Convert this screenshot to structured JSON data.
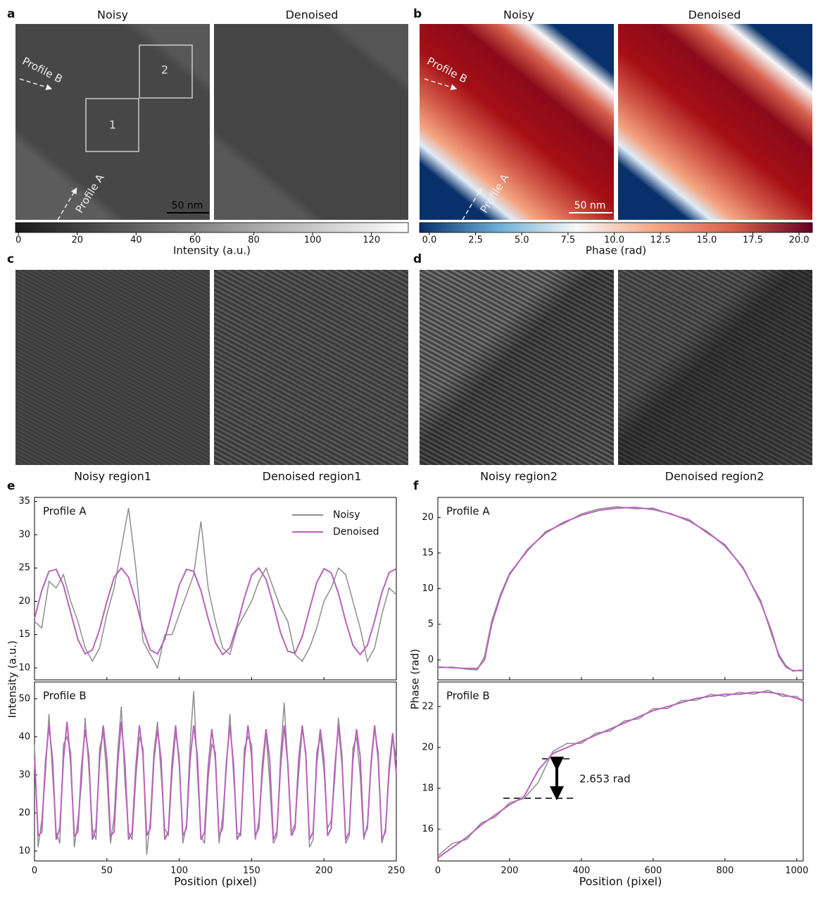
{
  "panels": {
    "a": {
      "letter": "a",
      "titles": [
        "Noisy",
        "Denoised"
      ],
      "roi_labels": [
        "1",
        "2"
      ],
      "profiles": [
        "Profile A",
        "Profile B"
      ],
      "scale_bar": "50 nm"
    },
    "b": {
      "letter": "b",
      "titles": [
        "Noisy",
        "Denoised"
      ],
      "profiles": [
        "Profile A",
        "Profile B"
      ],
      "scale_bar": "50 nm"
    },
    "c": {
      "letter": "c",
      "captions": [
        "Noisy region1",
        "Denoised region1"
      ]
    },
    "d": {
      "letter": "d",
      "captions": [
        "Noisy region2",
        "Denoised region2"
      ]
    },
    "e": {
      "letter": "e"
    },
    "f": {
      "letter": "f"
    }
  },
  "colorbars": [
    {
      "label": "Intensity (a.u.)",
      "lim": [
        -1,
        132.5
      ],
      "colors": [
        "#1a1a1a",
        "#ffffff"
      ],
      "ticks": [
        0,
        20,
        40,
        60,
        80,
        100,
        120
      ]
    },
    {
      "label": "Phase (rad)",
      "lim": [
        -0.53,
        20.72
      ],
      "colors": [
        "#08306b",
        "#6baed6",
        "#f7f7f7",
        "#f4a582",
        "#d6604d",
        "#67001f"
      ],
      "ticks": [
        {
          "value": 0,
          "label": "0.0"
        },
        {
          "value": 2.5,
          "label": "2.5"
        },
        {
          "value": 5,
          "label": "5.0"
        },
        {
          "value": 7.5,
          "label": "7.5"
        },
        {
          "value": 10,
          "label": "10.0"
        },
        {
          "value": 12.5,
          "label": "12.5"
        },
        {
          "value": 15,
          "label": "15.0"
        },
        {
          "value": 17.5,
          "label": "17.5"
        },
        {
          "value": 20,
          "label": "20.0"
        }
      ]
    }
  ],
  "chart_data": [
    {
      "type": "line",
      "title": "Profile A",
      "ylabel": "Intensity (a.u.)",
      "legend": "upper right",
      "show_xticklabels": false,
      "xlim": [
        0,
        250
      ],
      "xticks": [
        0,
        50,
        100,
        150,
        200,
        250
      ],
      "ylim": [
        8.2,
        35.6
      ],
      "yticks": [
        10,
        15,
        20,
        25,
        30,
        35
      ],
      "x": [
        0,
        5,
        10,
        15,
        20,
        25,
        30,
        35,
        40,
        45,
        50,
        55,
        60,
        65,
        70,
        75,
        80,
        85,
        90,
        95,
        100,
        105,
        110,
        115,
        120,
        125,
        130,
        135,
        140,
        145,
        150,
        155,
        160,
        165,
        170,
        175,
        180,
        185,
        190,
        195,
        200,
        205,
        210,
        215,
        220,
        225,
        230,
        235,
        240,
        245,
        250
      ],
      "series": [
        {
          "name": "Noisy",
          "color": "#8e8e8e",
          "values": [
            17,
            16,
            23,
            22,
            24,
            20,
            17,
            13,
            11,
            13,
            18,
            22,
            28,
            34,
            25,
            14,
            12,
            10,
            15,
            15,
            18,
            21,
            24,
            32,
            22,
            17,
            13,
            12,
            16,
            18,
            20,
            23,
            25,
            22,
            19,
            17,
            12,
            11,
            13,
            16,
            20,
            22,
            25,
            24,
            20,
            16,
            11,
            13,
            18,
            22,
            21
          ]
        },
        {
          "name": "Denoised",
          "color": "#b862bb",
          "values": [
            17.4,
            21.6,
            24.5,
            24.8,
            22.4,
            18.3,
            14.3,
            12.1,
            12.7,
            15.8,
            20.0,
            23.6,
            25.0,
            23.6,
            20.0,
            15.8,
            12.7,
            12.1,
            14.3,
            18.3,
            22.4,
            24.8,
            24.5,
            21.6,
            17.4,
            13.8,
            12.0,
            13.0,
            16.4,
            20.5,
            23.9,
            25.0,
            23.3,
            19.5,
            15.3,
            12.5,
            12.2,
            14.7,
            18.8,
            22.8,
            24.9,
            24.3,
            21.2,
            17.0,
            13.4,
            12.0,
            13.4,
            17.1,
            21.3,
            24.3,
            24.9
          ]
        }
      ]
    },
    {
      "type": "line",
      "title": "Profile B",
      "xlabel": "Position (pixel)",
      "xlim": [
        0,
        250
      ],
      "xticks": [
        0,
        50,
        100,
        150,
        200,
        250
      ],
      "ylim": [
        7.4,
        54.4
      ],
      "yticks": [
        10,
        20,
        30,
        40,
        50
      ],
      "x": [
        0,
        2.5,
        5,
        7.5,
        10,
        12.5,
        15,
        17.5,
        20,
        22.5,
        25,
        27.5,
        30,
        32.5,
        35,
        37.5,
        40,
        42.5,
        45,
        47.5,
        50,
        52.5,
        55,
        57.5,
        60,
        62.5,
        65,
        67.5,
        70,
        72.5,
        75,
        77.5,
        80,
        82.5,
        85,
        87.5,
        90,
        92.5,
        95,
        97.5,
        100,
        102.5,
        105,
        107.5,
        110,
        112.5,
        115,
        117.5,
        120,
        122.5,
        125,
        127.5,
        130,
        132.5,
        135,
        137.5,
        140,
        142.5,
        145,
        147.5,
        150,
        152.5,
        155,
        157.5,
        160,
        162.5,
        165,
        167.5,
        170,
        172.5,
        175,
        177.5,
        180,
        182.5,
        185,
        187.5,
        190,
        192.5,
        195,
        197.5,
        200,
        202.5,
        205,
        207.5,
        210,
        212.5,
        215,
        217.5,
        220,
        222.5,
        225,
        227.5,
        230,
        232.5,
        235,
        237.5,
        240,
        242.5,
        245,
        247.5,
        250
      ],
      "series": [
        {
          "color": "#8e8e8e",
          "values": [
            38,
            11,
            18,
            30,
            46,
            30,
            15,
            12,
            38,
            40,
            36,
            11,
            18,
            28,
            45,
            32,
            16,
            13,
            37,
            41,
            30,
            12,
            19,
            36,
            48,
            28,
            15,
            13,
            29,
            40,
            37,
            9,
            18,
            36,
            44,
            30,
            16,
            14,
            30,
            41,
            35,
            12,
            17,
            38,
            52,
            31,
            14,
            12,
            29,
            38,
            36,
            12,
            19,
            31,
            46,
            30,
            15,
            14,
            37,
            40,
            38,
            13,
            18,
            30,
            41,
            28,
            12,
            14,
            35,
            49,
            33,
            15,
            17,
            30,
            42,
            36,
            11,
            13,
            36,
            40,
            31,
            16,
            18,
            29,
            45,
            35,
            12,
            14,
            37,
            40,
            30,
            13,
            17,
            32,
            42,
            36,
            12,
            16,
            30,
            40,
            34
          ]
        },
        {
          "color": "#b862bb",
          "values": [
            35,
            14,
            15,
            33,
            43,
            34,
            13,
            16,
            34,
            44,
            33,
            14,
            15,
            32,
            42,
            35,
            13,
            16,
            34,
            43,
            34,
            14,
            15,
            33,
            44,
            33,
            13,
            15,
            32,
            43,
            35,
            14,
            16,
            34,
            42,
            34,
            13,
            15,
            33,
            43,
            33,
            14,
            16,
            34,
            43,
            35,
            13,
            15,
            32,
            42,
            34,
            14,
            16,
            33,
            43,
            33,
            13,
            15,
            34,
            43,
            35,
            14,
            16,
            33,
            42,
            34,
            13,
            15,
            32,
            43,
            33,
            14,
            16,
            34,
            43,
            35,
            13,
            15,
            33,
            42,
            34,
            14,
            16,
            32,
            43,
            33,
            13,
            15,
            34,
            42,
            35,
            14,
            16,
            33,
            43,
            34,
            13,
            15,
            32,
            41,
            30
          ]
        }
      ]
    },
    {
      "type": "line",
      "title": "Profile A",
      "ylabel": "Phase (rad)",
      "show_xticklabels": false,
      "xlim": [
        0,
        1018
      ],
      "xticks": [
        0,
        200,
        400,
        600,
        800,
        1000
      ],
      "ylim": [
        -2.8,
        22.8
      ],
      "yticks": [
        0,
        5,
        10,
        15,
        20
      ],
      "x": [
        0,
        40,
        80,
        110,
        130,
        150,
        175,
        200,
        250,
        300,
        350,
        400,
        450,
        500,
        550,
        600,
        650,
        700,
        750,
        800,
        850,
        900,
        930,
        950,
        970,
        990,
        1010,
        1020
      ],
      "series": [
        {
          "color": "#8e8e8e",
          "values": [
            -1.1,
            -1.0,
            -1.3,
            -1.4,
            0.5,
            5.5,
            9.3,
            12.2,
            15.3,
            18.0,
            19.1,
            20.5,
            21.2,
            21.5,
            21.2,
            21.3,
            20.4,
            19.7,
            17.8,
            16.2,
            12.8,
            8.3,
            3.5,
            0.8,
            -0.8,
            -1.6,
            -1.4,
            -1.6
          ]
        },
        {
          "color": "#b862bb",
          "values": [
            -1,
            -1.1,
            -1.2,
            -1.2,
            0,
            5,
            9,
            12,
            15.5,
            17.8,
            19.3,
            20.3,
            21,
            21.3,
            21.4,
            21.1,
            20.5,
            19.5,
            18,
            16,
            13,
            8,
            4,
            0.5,
            -1,
            -1.5,
            -1.5,
            -1.5
          ]
        }
      ]
    },
    {
      "type": "line",
      "title": "Profile B",
      "xlabel": "Position (pixel)",
      "annotation": "2.653 rad",
      "xlim": [
        0,
        1018
      ],
      "xticks": [
        0,
        200,
        400,
        600,
        800,
        1000
      ],
      "ylim": [
        14.45,
        23.2
      ],
      "yticks": [
        16,
        18,
        20,
        22
      ],
      "x": [
        0,
        40,
        80,
        120,
        160,
        200,
        240,
        280,
        320,
        360,
        400,
        440,
        480,
        520,
        560,
        600,
        640,
        680,
        720,
        760,
        800,
        840,
        880,
        920,
        960,
        1000,
        1020
      ],
      "series": [
        {
          "color": "#8e8e8e",
          "values": [
            14.7,
            15.3,
            15.5,
            16.3,
            16.6,
            17.3,
            17.5,
            18.3,
            19.8,
            20.2,
            20.2,
            20.7,
            20.8,
            21.3,
            21.4,
            21.9,
            21.9,
            22.3,
            22.3,
            22.6,
            22.5,
            22.7,
            22.6,
            22.8,
            22.5,
            22.5,
            22.2
          ]
        },
        {
          "color": "#b862bb",
          "values": [
            14.6,
            15.1,
            15.6,
            16.2,
            16.7,
            17.2,
            17.6,
            18.9,
            19.7,
            20.0,
            20.3,
            20.6,
            20.9,
            21.2,
            21.5,
            21.8,
            22.0,
            22.2,
            22.4,
            22.5,
            22.6,
            22.6,
            22.7,
            22.7,
            22.6,
            22.4,
            22.3
          ]
        }
      ]
    }
  ]
}
